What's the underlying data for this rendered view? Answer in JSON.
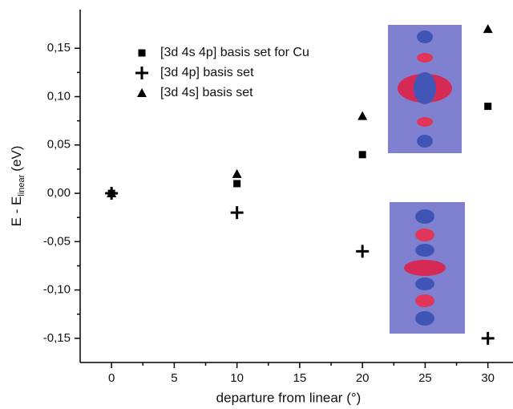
{
  "chart_data": {
    "type": "scatter",
    "xlabel": "departure from linear (°)",
    "ylabel": "E - E",
    "ylabel_sub": "linear",
    "ylabel_unit": "(eV)",
    "x": [
      0,
      10,
      20,
      30
    ],
    "series": [
      {
        "name": "[3d 4s 4p] basis set for Cu",
        "marker": "square",
        "color": "#000000",
        "values": [
          0,
          0.01,
          0.04,
          0.09
        ]
      },
      {
        "name": "[3d 4p] basis set",
        "marker": "plus",
        "color": "#000000",
        "values": [
          0,
          -0.02,
          -0.06,
          -0.15
        ]
      },
      {
        "name": "[3d 4s] basis set",
        "marker": "triangle",
        "color": "#000000",
        "values": [
          0,
          0.02,
          0.08,
          0.17
        ]
      }
    ],
    "xlim": [
      -2.5,
      32
    ],
    "xticks": [
      0,
      5,
      10,
      15,
      20,
      25,
      30
    ],
    "ylim": [
      -0.175,
      0.19
    ],
    "yticks": [
      {
        "value": -0.15,
        "label": "-0,15"
      },
      {
        "value": -0.1,
        "label": "-0,10"
      },
      {
        "value": -0.05,
        "label": "-0,05"
      },
      {
        "value": 0,
        "label": "0,00"
      },
      {
        "value": 0.05,
        "label": "0,05"
      },
      {
        "value": 0.1,
        "label": "0,10"
      },
      {
        "value": 0.15,
        "label": "0,15"
      }
    ],
    "legend": "upper-left"
  }
}
